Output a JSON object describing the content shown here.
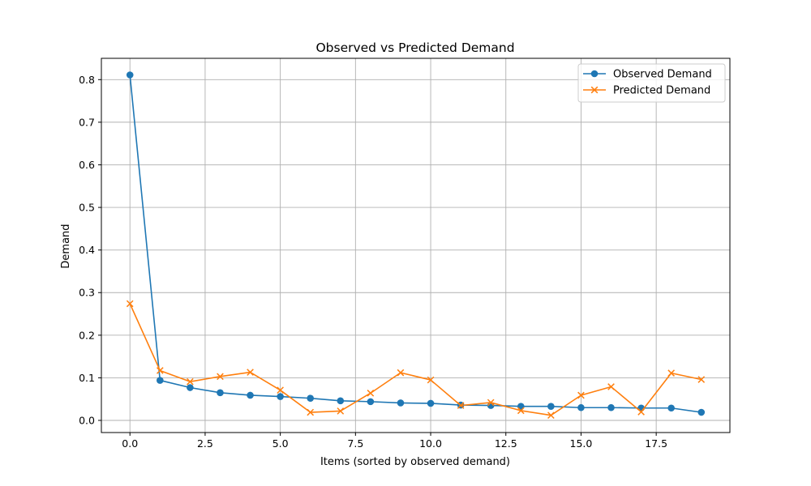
{
  "chart_data": {
    "type": "line",
    "title": "Observed vs Predicted Demand",
    "xlabel": "Items (sorted by observed demand)",
    "ylabel": "Demand",
    "xlim": [
      -0.95,
      19.95
    ],
    "ylim": [
      -0.0285,
      0.85
    ],
    "xticks": [
      0.0,
      2.5,
      5.0,
      7.5,
      10.0,
      12.5,
      15.0,
      17.5
    ],
    "xtick_labels": [
      "0.0",
      "2.5",
      "5.0",
      "7.5",
      "10.0",
      "12.5",
      "15.0",
      "17.5"
    ],
    "yticks": [
      0.0,
      0.1,
      0.2,
      0.3,
      0.4,
      0.5,
      0.6,
      0.7,
      0.8
    ],
    "ytick_labels": [
      "0.0",
      "0.1",
      "0.2",
      "0.3",
      "0.4",
      "0.5",
      "0.6",
      "0.7",
      "0.8"
    ],
    "grid": true,
    "legend_position": "top-right",
    "x": [
      0,
      1,
      2,
      3,
      4,
      5,
      6,
      7,
      8,
      9,
      10,
      11,
      12,
      13,
      14,
      15,
      16,
      17,
      18,
      19
    ],
    "series": [
      {
        "name": "Observed Demand",
        "marker": "circle",
        "color": "#1f77b4",
        "values": [
          0.811,
          0.094,
          0.077,
          0.065,
          0.059,
          0.056,
          0.052,
          0.046,
          0.044,
          0.041,
          0.04,
          0.036,
          0.035,
          0.033,
          0.033,
          0.03,
          0.03,
          0.029,
          0.029,
          0.019
        ]
      },
      {
        "name": "Predicted Demand",
        "marker": "x",
        "color": "#ff7f0e",
        "values": [
          0.274,
          0.117,
          0.091,
          0.103,
          0.113,
          0.071,
          0.019,
          0.022,
          0.064,
          0.112,
          0.095,
          0.035,
          0.042,
          0.023,
          0.012,
          0.059,
          0.079,
          0.02,
          0.111,
          0.096
        ]
      }
    ]
  }
}
